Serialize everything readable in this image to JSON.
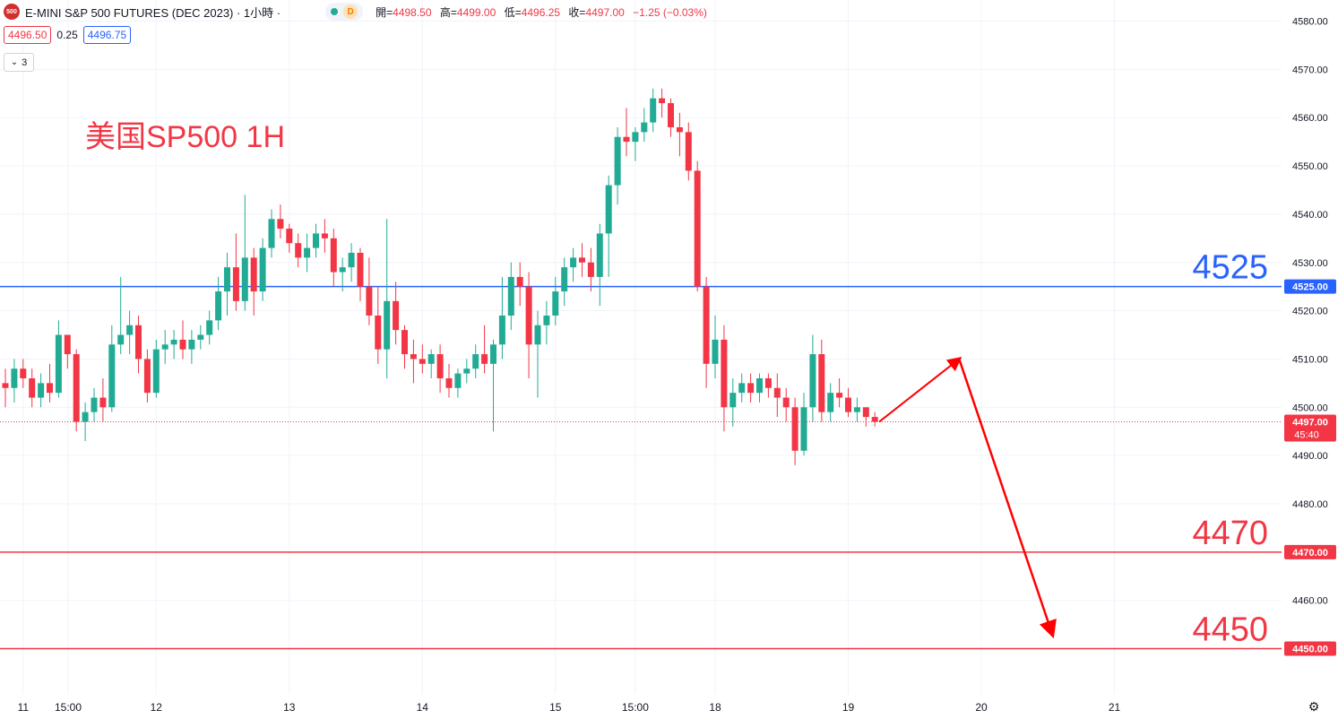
{
  "header": {
    "logo_text": "500",
    "symbol_title": "E-MINI S&P 500 FUTURES (DEC 2023) · 1小時 ·",
    "interval_badge": "D",
    "ohlc": {
      "open_label": "開",
      "open": "4498.50",
      "high_label": "高",
      "high": "4499.00",
      "low_label": "低",
      "low": "4496.25",
      "close_label": "收",
      "close": "4497.00",
      "change": "−1.25 (−0.03%)"
    }
  },
  "quote": {
    "bid": "4496.50",
    "spread": "0.25",
    "ask": "4496.75"
  },
  "indicators_count": "3",
  "annotation_title": "美国SP500 1H",
  "colors": {
    "up": "#22ab94",
    "down": "#f23645",
    "blue_level": "#2962ff",
    "red_level": "#f23645",
    "arrow": "#ff0000"
  },
  "chart_data": {
    "type": "candlestick",
    "y_axis": {
      "min": 4446,
      "max": 4583,
      "ticks": [
        "4450.00",
        "4460.00",
        "4470.00",
        "4480.00",
        "4490.00",
        "4500.00",
        "4510.00",
        "4520.00",
        "4530.00",
        "4540.00",
        "4550.00",
        "4560.00",
        "4570.00",
        "4580.00"
      ]
    },
    "x_axis": {
      "labels": [
        {
          "label": "15:00",
          "index": -8
        },
        {
          "label": "11",
          "index": 2
        },
        {
          "label": "12",
          "index": 17
        },
        {
          "label": "13",
          "index": 32
        },
        {
          "label": "14",
          "index": 47
        },
        {
          "label": "15",
          "index": 62
        },
        {
          "label": "15:00",
          "index": 71
        },
        {
          "label": "18",
          "index": 80
        },
        {
          "label": "19",
          "index": 95
        },
        {
          "label": "20",
          "index": 110
        },
        {
          "label": "21",
          "index": 125
        }
      ]
    },
    "horizontal_levels": [
      {
        "value": 4525,
        "label": "4525",
        "axis_label": "4525.00",
        "color": "#2962ff"
      },
      {
        "value": 4470,
        "label": "4470",
        "axis_label": "4470.00",
        "color": "#f23645"
      },
      {
        "value": 4450,
        "label": "4450",
        "axis_label": "4450.00",
        "color": "#f23645"
      }
    ],
    "last_price": {
      "value": 4497,
      "label": "4497.00",
      "countdown": "45:40"
    },
    "arrow_path": [
      {
        "index": 98.5,
        "value": 4497
      },
      {
        "index": 107.5,
        "value": 4510
      },
      {
        "index": 118,
        "value": 4453
      }
    ],
    "candles": [
      [
        4505,
        4508,
        4500,
        4504
      ],
      [
        4504,
        4510,
        4501,
        4508
      ],
      [
        4508,
        4510,
        4504,
        4506
      ],
      [
        4506,
        4508,
        4500,
        4502
      ],
      [
        4502,
        4507,
        4500,
        4505
      ],
      [
        4505,
        4509,
        4501,
        4503
      ],
      [
        4503,
        4518,
        4502,
        4515
      ],
      [
        4515,
        4515,
        4508,
        4511
      ],
      [
        4511,
        4512,
        4495,
        4497
      ],
      [
        4497,
        4501,
        4493,
        4499
      ],
      [
        4499,
        4504,
        4497,
        4502
      ],
      [
        4502,
        4506,
        4497,
        4500
      ],
      [
        4500,
        4517,
        4499,
        4513
      ],
      [
        4513,
        4527,
        4511,
        4515
      ],
      [
        4515,
        4520,
        4511,
        4517
      ],
      [
        4517,
        4519,
        4507,
        4510
      ],
      [
        4510,
        4512,
        4501,
        4503
      ],
      [
        4503,
        4514,
        4502,
        4512
      ],
      [
        4512,
        4516,
        4509,
        4513
      ],
      [
        4513,
        4516,
        4510,
        4514
      ],
      [
        4514,
        4518,
        4510,
        4512
      ],
      [
        4512,
        4516,
        4509,
        4514
      ],
      [
        4514,
        4517,
        4512,
        4515
      ],
      [
        4515,
        4520,
        4513,
        4518
      ],
      [
        4518,
        4527,
        4516,
        4524
      ],
      [
        4524,
        4532,
        4519,
        4529
      ],
      [
        4529,
        4536,
        4520,
        4522
      ],
      [
        4522,
        4544,
        4520,
        4531
      ],
      [
        4531,
        4533,
        4519,
        4524
      ],
      [
        4524,
        4535,
        4522,
        4533
      ],
      [
        4533,
        4541,
        4531,
        4539
      ],
      [
        4539,
        4542,
        4535,
        4537
      ],
      [
        4537,
        4538,
        4532,
        4534
      ],
      [
        4534,
        4536,
        4529,
        4531
      ],
      [
        4531,
        4536,
        4528,
        4533
      ],
      [
        4533,
        4538,
        4531,
        4536
      ],
      [
        4536,
        4539,
        4532,
        4535
      ],
      [
        4535,
        4537,
        4525,
        4528
      ],
      [
        4528,
        4531,
        4524,
        4529
      ],
      [
        4529,
        4534,
        4526,
        4532
      ],
      [
        4532,
        4533,
        4522,
        4525
      ],
      [
        4525,
        4531,
        4517,
        4519
      ],
      [
        4519,
        4525,
        4509,
        4512
      ],
      [
        4512,
        4539,
        4506,
        4522
      ],
      [
        4522,
        4526,
        4513,
        4516
      ],
      [
        4516,
        4517,
        4508,
        4511
      ],
      [
        4511,
        4514,
        4505,
        4510
      ],
      [
        4510,
        4513,
        4507,
        4509
      ],
      [
        4509,
        4512,
        4506,
        4511
      ],
      [
        4511,
        4513,
        4503,
        4506
      ],
      [
        4506,
        4509,
        4502,
        4504
      ],
      [
        4504,
        4508,
        4502,
        4507
      ],
      [
        4507,
        4510,
        4505,
        4508
      ],
      [
        4508,
        4513,
        4506,
        4511
      ],
      [
        4511,
        4517,
        4507,
        4509
      ],
      [
        4509,
        4514,
        4495,
        4513
      ],
      [
        4513,
        4527,
        4510,
        4519
      ],
      [
        4519,
        4530,
        4516,
        4527
      ],
      [
        4527,
        4530,
        4521,
        4525
      ],
      [
        4525,
        4528,
        4506,
        4513
      ],
      [
        4513,
        4520,
        4502,
        4517
      ],
      [
        4517,
        4522,
        4513,
        4519
      ],
      [
        4519,
        4527,
        4517,
        4524
      ],
      [
        4524,
        4531,
        4521,
        4529
      ],
      [
        4529,
        4533,
        4526,
        4531
      ],
      [
        4531,
        4534,
        4527,
        4530
      ],
      [
        4530,
        4533,
        4524,
        4527
      ],
      [
        4527,
        4538,
        4521,
        4536
      ],
      [
        4536,
        4548,
        4527,
        4546
      ],
      [
        4546,
        4558,
        4542,
        4556
      ],
      [
        4556,
        4562,
        4552,
        4555
      ],
      [
        4555,
        4558,
        4551,
        4557
      ],
      [
        4557,
        4562,
        4555,
        4559
      ],
      [
        4559,
        4566,
        4557,
        4564
      ],
      [
        4564,
        4566,
        4560,
        4563
      ],
      [
        4563,
        4564,
        4556,
        4558
      ],
      [
        4558,
        4561,
        4552,
        4557
      ],
      [
        4557,
        4559,
        4547,
        4549
      ],
      [
        4549,
        4551,
        4524,
        4525
      ],
      [
        4525,
        4527,
        4504,
        4509
      ],
      [
        4509,
        4519,
        4506,
        4514
      ],
      [
        4514,
        4517,
        4495,
        4500
      ],
      [
        4500,
        4506,
        4496,
        4503
      ],
      [
        4503,
        4507,
        4501,
        4505
      ],
      [
        4505,
        4507,
        4501,
        4503
      ],
      [
        4503,
        4507,
        4501,
        4506
      ],
      [
        4506,
        4507,
        4502,
        4504
      ],
      [
        4504,
        4507,
        4498,
        4502
      ],
      [
        4502,
        4504,
        4497,
        4500
      ],
      [
        4500,
        4502,
        4488,
        4491
      ],
      [
        4491,
        4503,
        4490,
        4500
      ],
      [
        4500,
        4515,
        4497,
        4511
      ],
      [
        4511,
        4514,
        4497,
        4499
      ],
      [
        4499,
        4505,
        4497,
        4503
      ],
      [
        4503,
        4506,
        4500,
        4502
      ],
      [
        4502,
        4504,
        4498,
        4499
      ],
      [
        4499,
        4502,
        4497,
        4500
      ],
      [
        4500,
        4500,
        4496,
        4498
      ],
      [
        4498,
        4499,
        4496,
        4497
      ]
    ]
  }
}
